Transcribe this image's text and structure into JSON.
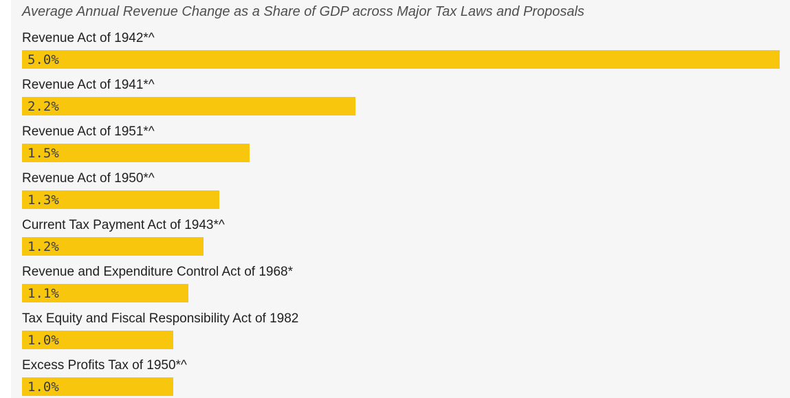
{
  "title": "Average Annual Revenue Change as a Share of GDP across Major Tax Laws and Proposals",
  "colors": {
    "bar": "#f8c70d",
    "surface_background": "#f6f6f7",
    "page_background": "#ffffff",
    "title_text": "#4f4f4f",
    "label_text": "#1f1f1f",
    "value_text": "#3c3c3c"
  },
  "chart_data": {
    "type": "bar",
    "orientation": "horizontal",
    "title": "Average Annual Revenue Change as a Share of GDP across Major Tax Laws and Proposals",
    "xlabel": "",
    "ylabel": "",
    "unit": "% of GDP",
    "xlim": [
      0,
      5.0
    ],
    "grid": false,
    "legend": false,
    "categories": [
      "Revenue Act of 1942*^",
      "Revenue Act of 1941*^",
      "Revenue Act of 1951*^",
      "Revenue Act of 1950*^",
      "Current Tax Payment Act of 1943*^",
      "Revenue and Expenditure Control Act of 1968*",
      "Tax Equity and Fiscal Responsibility Act of 1982",
      "Excess Profits Tax of 1950*^"
    ],
    "values": [
      5.0,
      2.2,
      1.5,
      1.3,
      1.2,
      1.1,
      1.0,
      1.0
    ],
    "value_labels": [
      "5.0%",
      "2.2%",
      "1.5%",
      "1.3%",
      "1.2%",
      "1.1%",
      "1.0%",
      "1.0%"
    ]
  }
}
